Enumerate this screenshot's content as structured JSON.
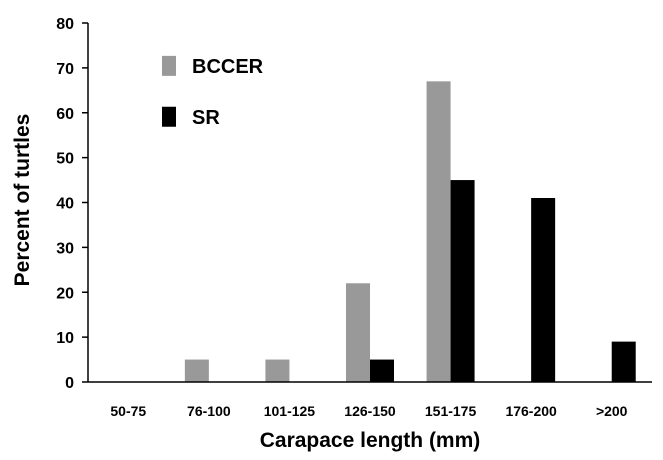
{
  "chart_data": {
    "type": "bar",
    "title": "",
    "xlabel": "Carapace length (mm)",
    "ylabel": "Percent of turtles",
    "ylim": [
      0,
      80
    ],
    "yticks": [
      0,
      10,
      20,
      30,
      40,
      50,
      60,
      70,
      80
    ],
    "categories": [
      "50-75",
      "76-100",
      "101-125",
      "126-150",
      "151-175",
      "176-200",
      ">200"
    ],
    "series": [
      {
        "name": "BCCER",
        "color": "#999999",
        "values": [
          0,
          5,
          5,
          22,
          67,
          0,
          0
        ]
      },
      {
        "name": "SR",
        "color": "#000000",
        "values": [
          0,
          0,
          0,
          5,
          45,
          41,
          9
        ]
      }
    ],
    "legend_position": "top-left",
    "grid": false
  }
}
